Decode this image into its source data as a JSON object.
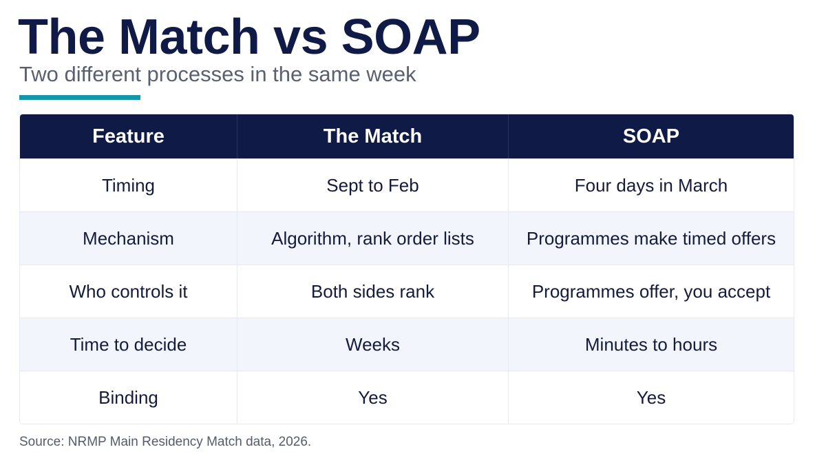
{
  "title": "The Match vs SOAP",
  "subtitle": "Two different processes in the same week",
  "colors": {
    "title": "#0f1a47",
    "accent": "#1596a8",
    "header_bg": "#0f1a47",
    "stripe": "#f2f5fb"
  },
  "table": {
    "headers": [
      "Feature",
      "The Match",
      "SOAP"
    ],
    "rows": [
      [
        "Timing",
        "Sept to Feb",
        "Four days in March"
      ],
      [
        "Mechanism",
        "Algorithm, rank order lists",
        "Programmes make timed offers"
      ],
      [
        "Who controls it",
        "Both sides rank",
        "Programmes offer, you accept"
      ],
      [
        "Time to decide",
        "Weeks",
        "Minutes to hours"
      ],
      [
        "Binding",
        "Yes",
        "Yes"
      ]
    ]
  },
  "footer": {
    "source": "Source: NRMP Main Residency Match data, 2026."
  }
}
